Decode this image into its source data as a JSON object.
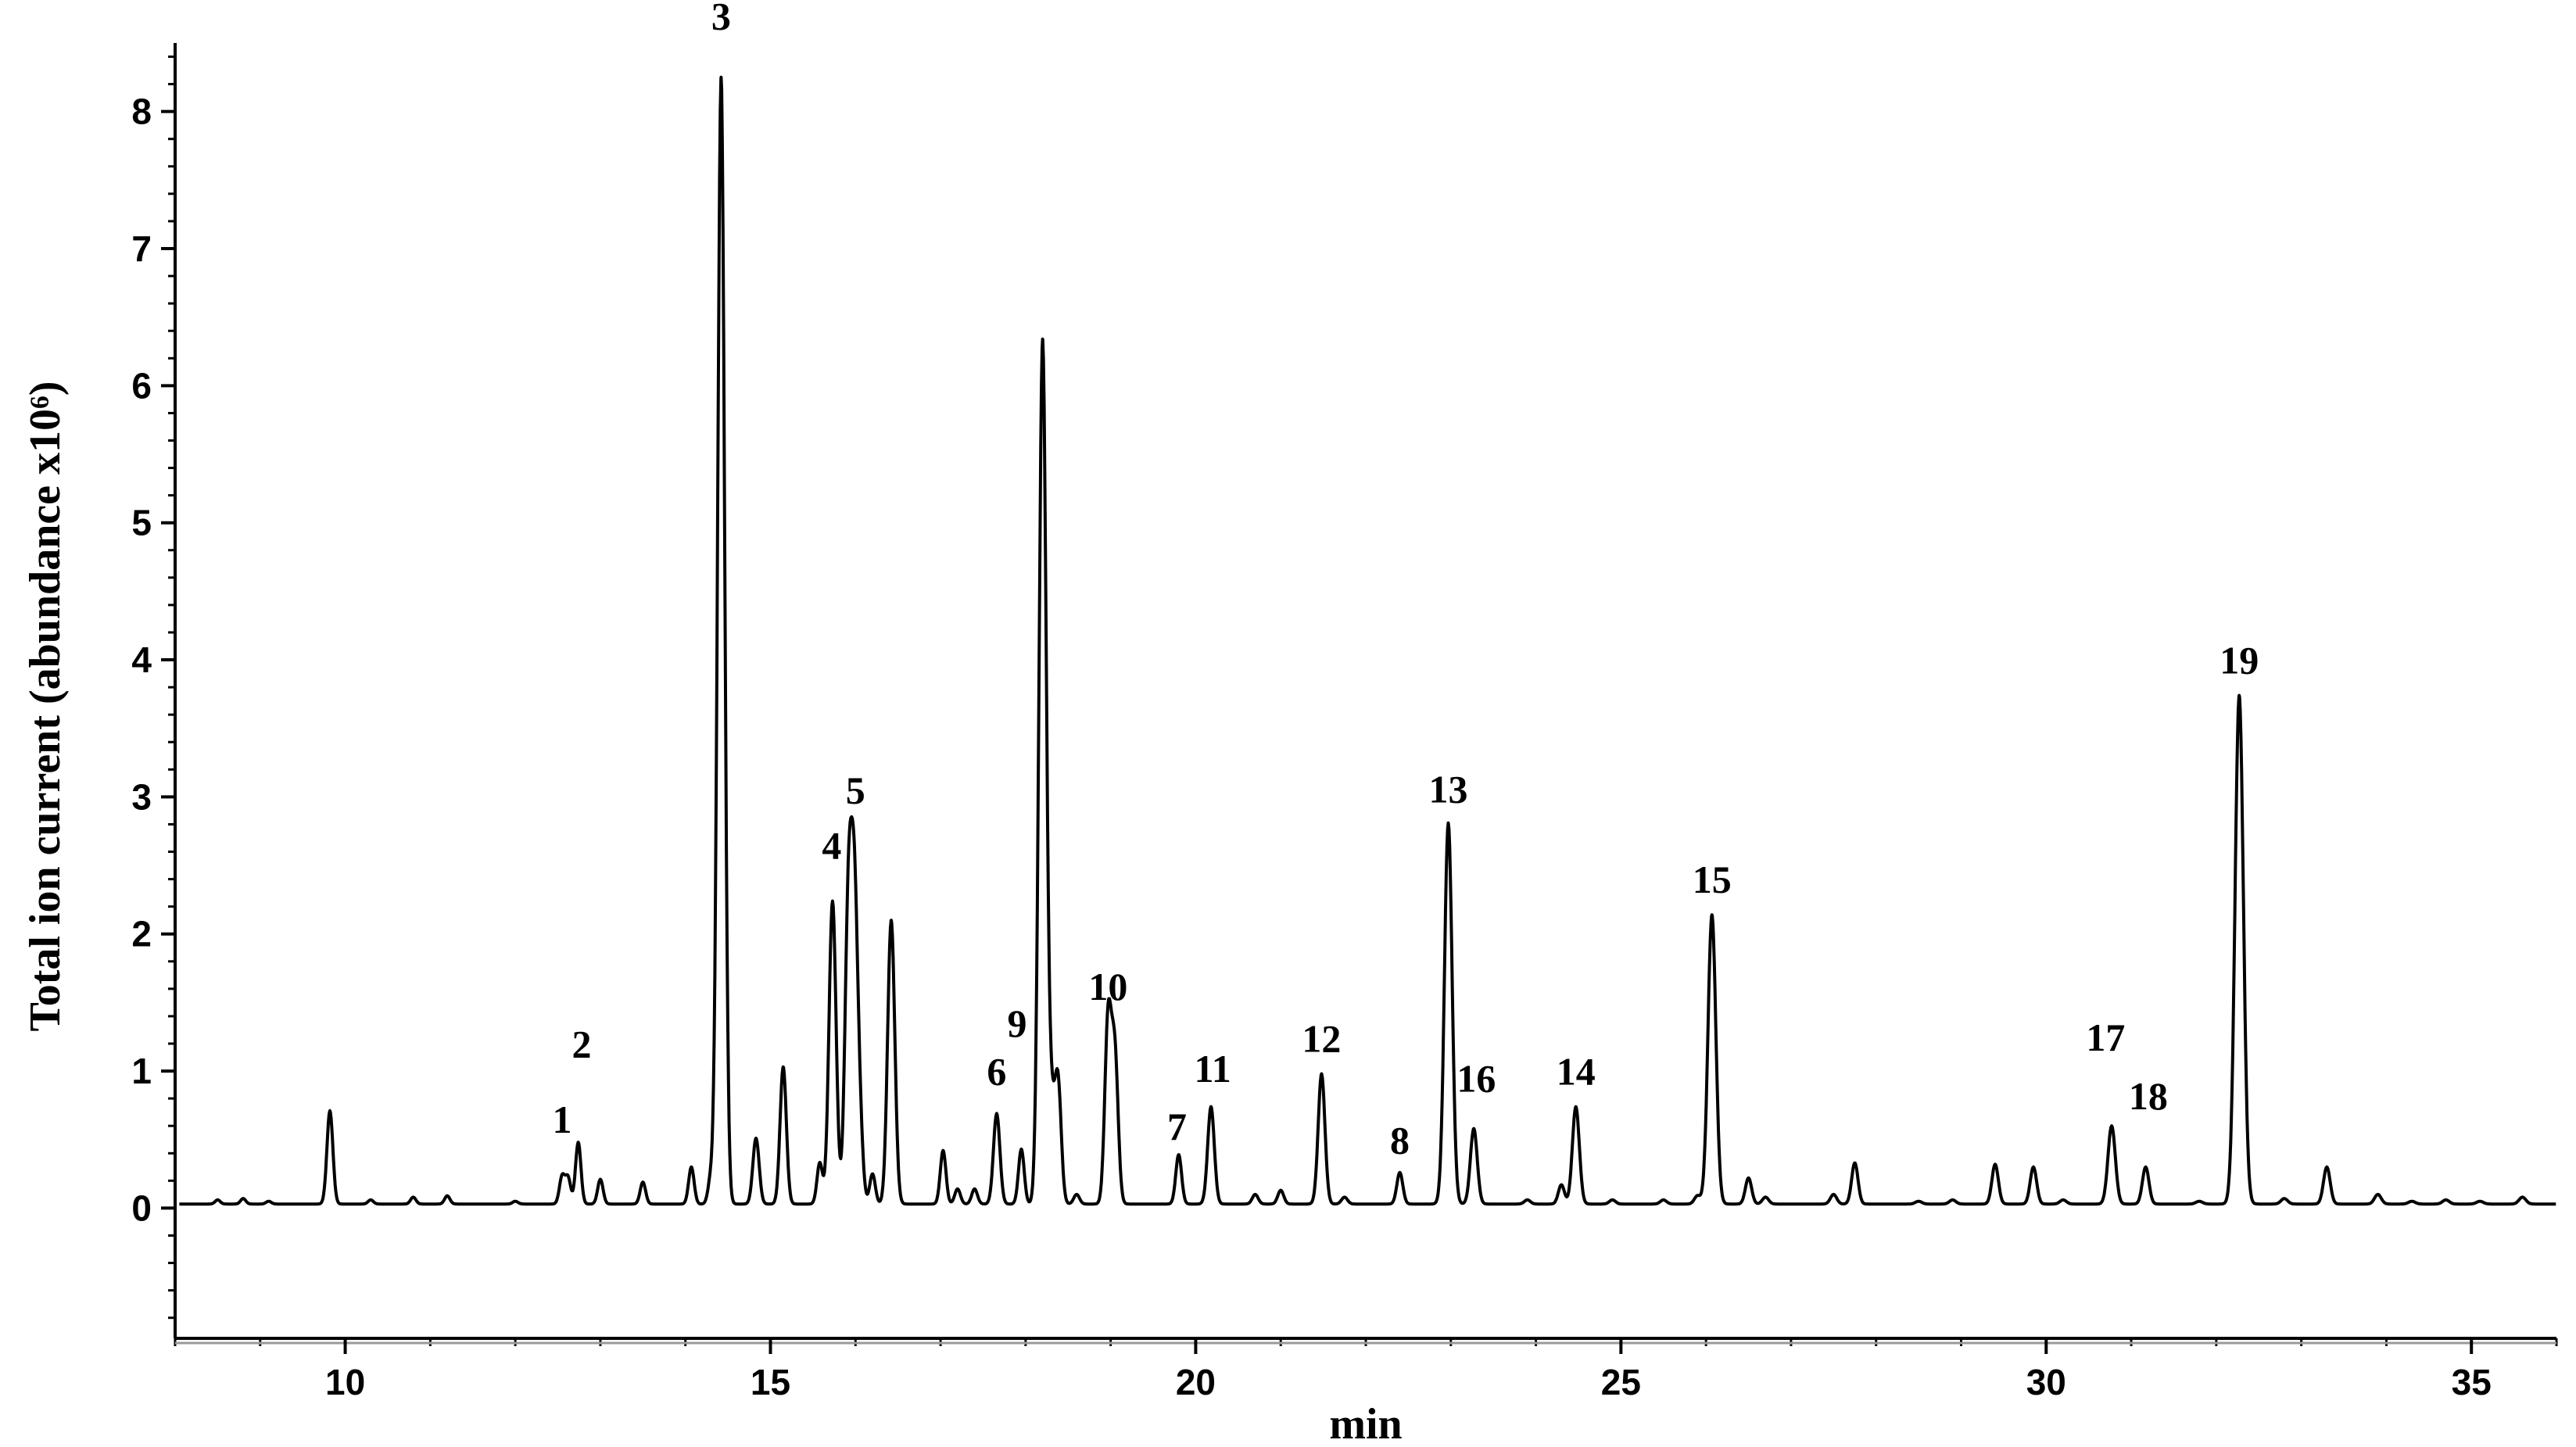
{
  "chart_data": {
    "type": "line",
    "xlabel": "min",
    "ylabel": "Total ion current (abundance x10⁶)",
    "xlim": [
      8,
      36
    ],
    "ylim": [
      -0.95,
      8.5
    ],
    "x_ticks": [
      10,
      15,
      20,
      25,
      30,
      35
    ],
    "y_ticks": [
      0,
      1,
      2,
      3,
      4,
      5,
      6,
      7,
      8
    ],
    "baseline": 0.03,
    "series": [
      {
        "peaks": [
          {
            "x": 8.5,
            "y": 0.06
          },
          {
            "x": 8.8,
            "y": 0.07
          },
          {
            "x": 9.1,
            "y": 0.05
          },
          {
            "x": 9.82,
            "y": 0.71
          },
          {
            "x": 10.3,
            "y": 0.06
          },
          {
            "x": 10.8,
            "y": 0.08
          },
          {
            "x": 11.2,
            "y": 0.09
          },
          {
            "x": 12.0,
            "y": 0.05
          },
          {
            "x": 12.55,
            "y": 0.23
          },
          {
            "x": 12.62,
            "y": 0.22
          },
          {
            "x": 12.74,
            "y": 0.48
          },
          {
            "x": 13.0,
            "y": 0.21
          },
          {
            "x": 13.5,
            "y": 0.19
          },
          {
            "x": 14.07,
            "y": 0.3
          },
          {
            "x": 14.3,
            "y": 0.22
          },
          {
            "x": 14.42,
            "y": 8.25
          },
          {
            "x": 14.83,
            "y": 0.51
          },
          {
            "x": 15.15,
            "y": 1.03
          },
          {
            "x": 15.58,
            "y": 0.33
          },
          {
            "x": 15.73,
            "y": 2.24
          },
          {
            "x": 15.92,
            "y": 2.31
          },
          {
            "x": 15.99,
            "y": 1.9
          },
          {
            "x": 16.05,
            "y": 0.56
          },
          {
            "x": 16.2,
            "y": 0.25
          },
          {
            "x": 16.42,
            "y": 2.1
          },
          {
            "x": 17.03,
            "y": 0.42
          },
          {
            "x": 17.2,
            "y": 0.14
          },
          {
            "x": 17.4,
            "y": 0.14
          },
          {
            "x": 17.66,
            "y": 0.69
          },
          {
            "x": 17.95,
            "y": 0.43
          },
          {
            "x": 18.2,
            "y": 6.32
          },
          {
            "x": 18.3,
            "y": 0.65
          },
          {
            "x": 18.38,
            "y": 0.93
          },
          {
            "x": 18.6,
            "y": 0.1
          },
          {
            "x": 18.97,
            "y": 1.37
          },
          {
            "x": 19.05,
            "y": 1.1
          },
          {
            "x": 19.8,
            "y": 0.39
          },
          {
            "x": 20.18,
            "y": 0.74
          },
          {
            "x": 20.7,
            "y": 0.1
          },
          {
            "x": 21.0,
            "y": 0.13
          },
          {
            "x": 21.48,
            "y": 0.98
          },
          {
            "x": 21.75,
            "y": 0.08
          },
          {
            "x": 22.4,
            "y": 0.26
          },
          {
            "x": 22.97,
            "y": 2.81
          },
          {
            "x": 23.27,
            "y": 0.58
          },
          {
            "x": 23.9,
            "y": 0.06
          },
          {
            "x": 24.3,
            "y": 0.17
          },
          {
            "x": 24.47,
            "y": 0.74
          },
          {
            "x": 24.9,
            "y": 0.06
          },
          {
            "x": 25.5,
            "y": 0.06
          },
          {
            "x": 25.9,
            "y": 0.09
          },
          {
            "x": 26.07,
            "y": 2.14
          },
          {
            "x": 26.5,
            "y": 0.22
          },
          {
            "x": 26.7,
            "y": 0.08
          },
          {
            "x": 27.5,
            "y": 0.1
          },
          {
            "x": 27.75,
            "y": 0.33
          },
          {
            "x": 28.5,
            "y": 0.05
          },
          {
            "x": 28.9,
            "y": 0.06
          },
          {
            "x": 29.4,
            "y": 0.32
          },
          {
            "x": 29.85,
            "y": 0.3
          },
          {
            "x": 30.2,
            "y": 0.06
          },
          {
            "x": 30.77,
            "y": 0.6
          },
          {
            "x": 31.17,
            "y": 0.3
          },
          {
            "x": 31.8,
            "y": 0.05
          },
          {
            "x": 32.27,
            "y": 3.74
          },
          {
            "x": 32.8,
            "y": 0.07
          },
          {
            "x": 33.3,
            "y": 0.3
          },
          {
            "x": 33.9,
            "y": 0.1
          },
          {
            "x": 34.3,
            "y": 0.05
          },
          {
            "x": 34.7,
            "y": 0.06
          },
          {
            "x": 35.1,
            "y": 0.05
          },
          {
            "x": 35.6,
            "y": 0.08
          }
        ]
      }
    ],
    "annotations": [
      {
        "label": "1",
        "x": 12.55,
        "y": 0.55
      },
      {
        "label": "2",
        "x": 12.78,
        "y": 1.1
      },
      {
        "label": "3",
        "x": 14.42,
        "y": 8.6
      },
      {
        "label": "4",
        "x": 15.72,
        "y": 2.55
      },
      {
        "label": "5",
        "x": 16.0,
        "y": 2.95
      },
      {
        "label": "6",
        "x": 17.66,
        "y": 0.9
      },
      {
        "label": "7",
        "x": 19.78,
        "y": 0.5
      },
      {
        "label": "8",
        "x": 22.4,
        "y": 0.4
      },
      {
        "label": "9",
        "x": 17.9,
        "y": 1.25
      },
      {
        "label": "10",
        "x": 18.97,
        "y": 1.52
      },
      {
        "label": "11",
        "x": 20.2,
        "y": 0.92
      },
      {
        "label": "12",
        "x": 21.48,
        "y": 1.14
      },
      {
        "label": "13",
        "x": 22.97,
        "y": 2.96
      },
      {
        "label": "14",
        "x": 24.47,
        "y": 0.9
      },
      {
        "label": "15",
        "x": 26.07,
        "y": 2.3
      },
      {
        "label": "16",
        "x": 23.3,
        "y": 0.85
      },
      {
        "label": "17",
        "x": 30.7,
        "y": 1.15
      },
      {
        "label": "18",
        "x": 31.2,
        "y": 0.72
      },
      {
        "label": "19",
        "x": 32.27,
        "y": 3.9
      }
    ],
    "grid": false,
    "legend": "none"
  }
}
